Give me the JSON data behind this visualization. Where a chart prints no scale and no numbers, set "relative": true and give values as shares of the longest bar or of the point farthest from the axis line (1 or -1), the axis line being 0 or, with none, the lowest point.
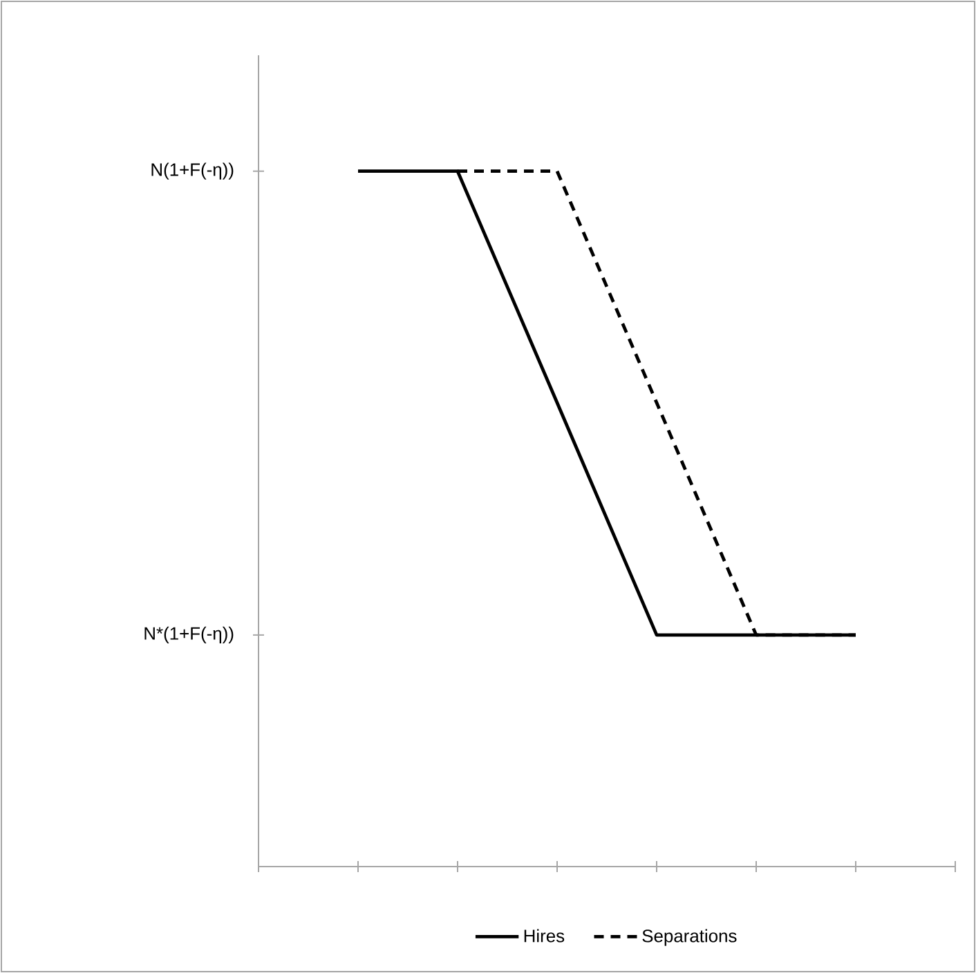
{
  "chart_data": {
    "type": "line",
    "relative": true,
    "categories": [
      null,
      null,
      null,
      null,
      null,
      null,
      null,
      null
    ],
    "series": [
      {
        "name": "Hires",
        "color": "#000000",
        "line_style": "solid",
        "values": [
          null,
          1,
          1,
          0.667,
          0.333,
          0.333,
          0.333,
          null
        ]
      },
      {
        "name": "Separations",
        "color": "#000000",
        "line_style": "dashed",
        "values": [
          null,
          null,
          1,
          1,
          0.667,
          0.333,
          0.333,
          null
        ]
      }
    ],
    "annotations": [
      "N(1+F(-η))",
      "N*(1+F(-η))"
    ],
    "grid": false,
    "legend": "bottom",
    "marker": "none"
  }
}
